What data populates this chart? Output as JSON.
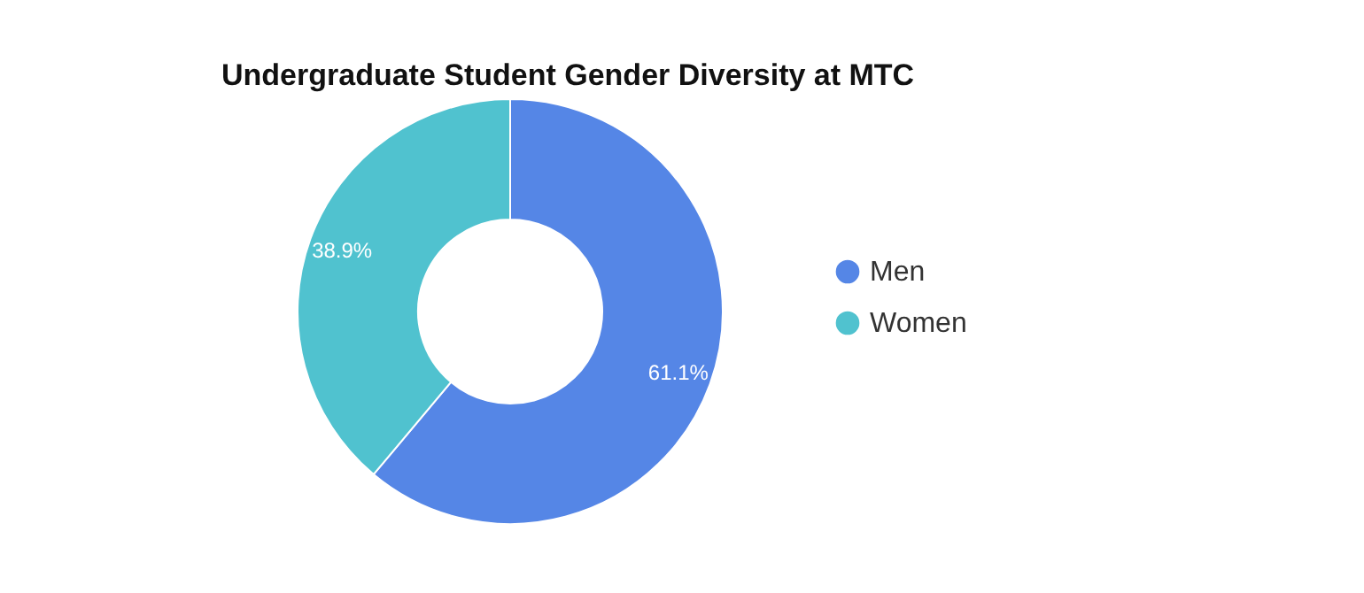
{
  "chart_data": {
    "type": "donut",
    "title": "Undergraduate Student Gender Diversity at MTC",
    "categories": [
      "Men",
      "Women"
    ],
    "values": [
      61.1,
      38.9
    ],
    "colors": [
      "#5586e6",
      "#50c2cf"
    ],
    "value_labels": [
      "61.1%",
      "38.9%"
    ],
    "legend": "right"
  }
}
